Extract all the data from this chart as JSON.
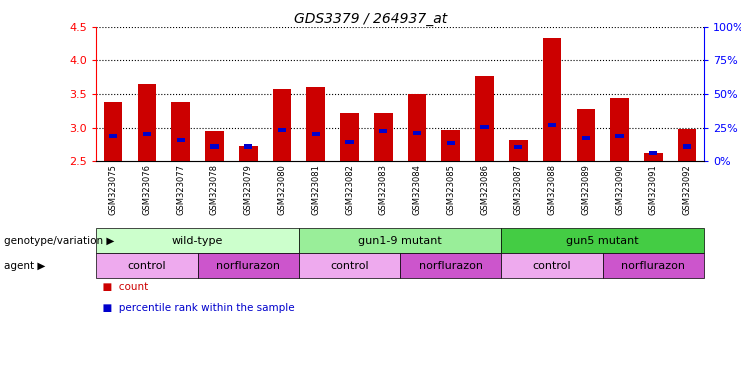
{
  "title": "GDS3379 / 264937_at",
  "samples": [
    "GSM323075",
    "GSM323076",
    "GSM323077",
    "GSM323078",
    "GSM323079",
    "GSM323080",
    "GSM323081",
    "GSM323082",
    "GSM323083",
    "GSM323084",
    "GSM323085",
    "GSM323086",
    "GSM323087",
    "GSM323088",
    "GSM323089",
    "GSM323090",
    "GSM323091",
    "GSM323092"
  ],
  "count_values": [
    3.38,
    3.65,
    3.38,
    2.95,
    2.72,
    3.58,
    3.6,
    3.22,
    3.22,
    3.5,
    2.96,
    3.77,
    2.82,
    4.33,
    3.28,
    3.44,
    2.62,
    2.98
  ],
  "percentile_values": [
    2.88,
    2.9,
    2.82,
    2.72,
    2.72,
    2.97,
    2.91,
    2.79,
    2.95,
    2.92,
    2.77,
    3.01,
    2.71,
    3.04,
    2.84,
    2.88,
    2.62,
    2.72
  ],
  "ymin": 2.5,
  "ymax": 4.5,
  "yticks": [
    2.5,
    3.0,
    3.5,
    4.0,
    4.5
  ],
  "right_yticks": [
    0,
    25,
    50,
    75,
    100
  ],
  "right_ytick_labels": [
    "0%",
    "25%",
    "50%",
    "75%",
    "100%"
  ],
  "bar_color": "#cc0000",
  "percentile_color": "#0000cc",
  "bar_width": 0.55,
  "genotype_groups": [
    {
      "label": "wild-type",
      "start": 0,
      "end": 6,
      "color": "#ccffcc"
    },
    {
      "label": "gun1-9 mutant",
      "start": 6,
      "end": 12,
      "color": "#99ee99"
    },
    {
      "label": "gun5 mutant",
      "start": 12,
      "end": 18,
      "color": "#44cc44"
    }
  ],
  "agent_groups": [
    {
      "label": "control",
      "start": 0,
      "end": 3,
      "color": "#eeaaee"
    },
    {
      "label": "norflurazon",
      "start": 3,
      "end": 6,
      "color": "#cc55cc"
    },
    {
      "label": "control",
      "start": 6,
      "end": 9,
      "color": "#eeaaee"
    },
    {
      "label": "norflurazon",
      "start": 9,
      "end": 12,
      "color": "#cc55cc"
    },
    {
      "label": "control",
      "start": 12,
      "end": 15,
      "color": "#eeaaee"
    },
    {
      "label": "norflurazon",
      "start": 15,
      "end": 18,
      "color": "#cc55cc"
    }
  ],
  "xlabel_row1": "genotype/variation",
  "xlabel_row2": "agent",
  "legend_count_label": "count",
  "legend_percentile_label": "percentile rank within the sample"
}
